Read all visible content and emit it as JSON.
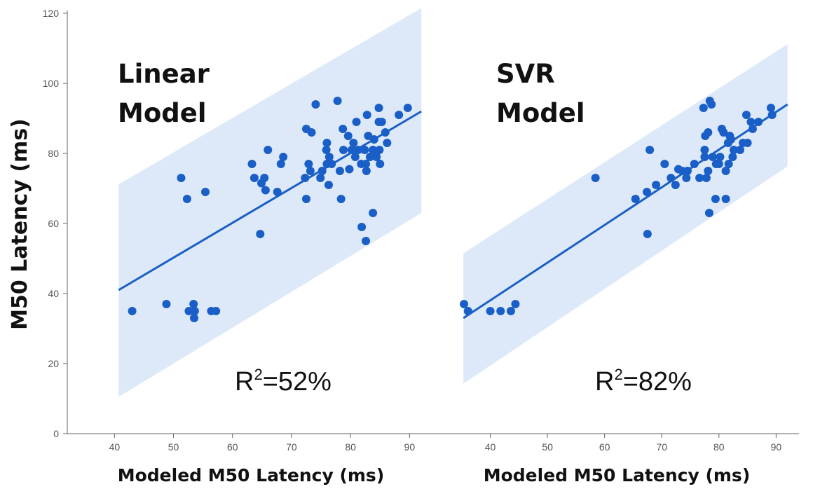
{
  "chart_data": {
    "type": "scatter",
    "ylabel": "M50 Latency (ms)",
    "ylim": [
      0,
      120
    ],
    "yticks": [
      0,
      20,
      40,
      60,
      80,
      100,
      120
    ],
    "colors": {
      "point": "#1a5fc7",
      "line": "#1a5fc7",
      "band": "#dde9f8",
      "axis": "#666666"
    },
    "panels": [
      {
        "title_line1": "Linear",
        "title_line2": "Model",
        "xlabel": "Modeled M50 Latency (ms)",
        "xlim": [
          32,
          94
        ],
        "xticks": [
          40,
          50,
          60,
          70,
          80,
          90
        ],
        "r2_prefix": "R",
        "r2_sup": "2",
        "r2_value": "=52%",
        "fit": {
          "x1": 40.7,
          "y1": 41,
          "x2": 92,
          "y2": 92
        },
        "band": {
          "lower_start": 10.5,
          "upper_start": 71.2,
          "lower_end": 63,
          "upper_end": 121.5
        },
        "points": [
          [
            43,
            35
          ],
          [
            48.8,
            37
          ],
          [
            51.3,
            73
          ],
          [
            52.3,
            67
          ],
          [
            52.6,
            35
          ],
          [
            53.4,
            37
          ],
          [
            53.5,
            35
          ],
          [
            53.5,
            33
          ],
          [
            53.6,
            35
          ],
          [
            55.4,
            69
          ],
          [
            56.4,
            35
          ],
          [
            57.2,
            35
          ],
          [
            63.3,
            77
          ],
          [
            63.7,
            73
          ],
          [
            64.7,
            57
          ],
          [
            64.9,
            71.5
          ],
          [
            65.4,
            73
          ],
          [
            65.6,
            69.5
          ],
          [
            66,
            81
          ],
          [
            67.6,
            69
          ],
          [
            68.2,
            77
          ],
          [
            68.6,
            79
          ],
          [
            72.3,
            73
          ],
          [
            72.5,
            87
          ],
          [
            72.5,
            67
          ],
          [
            72.9,
            77
          ],
          [
            73.2,
            75
          ],
          [
            73.4,
            86
          ],
          [
            74.1,
            94
          ],
          [
            74.9,
            73
          ],
          [
            75.2,
            75
          ],
          [
            75.9,
            81
          ],
          [
            76,
            83
          ],
          [
            76,
            77
          ],
          [
            76.3,
            71
          ],
          [
            76.4,
            79
          ],
          [
            76.8,
            77
          ],
          [
            77.8,
            95
          ],
          [
            78.2,
            75
          ],
          [
            78.4,
            67
          ],
          [
            78.7,
            87
          ],
          [
            78.8,
            81
          ],
          [
            79.6,
            85
          ],
          [
            79.8,
            75.5
          ],
          [
            80.2,
            81
          ],
          [
            80.5,
            83
          ],
          [
            80.8,
            79
          ],
          [
            81,
            89
          ],
          [
            81.3,
            81
          ],
          [
            81.8,
            77
          ],
          [
            81.9,
            59
          ],
          [
            82.4,
            81
          ],
          [
            82.6,
            55
          ],
          [
            82.7,
            75
          ],
          [
            82.6,
            77
          ],
          [
            82.8,
            91
          ],
          [
            83,
            85
          ],
          [
            83.3,
            79
          ],
          [
            83.8,
            63
          ],
          [
            83.8,
            81
          ],
          [
            84,
            84
          ],
          [
            84.4,
            79
          ],
          [
            84.8,
            93
          ],
          [
            84.8,
            89
          ],
          [
            84.9,
            81
          ],
          [
            85,
            77
          ],
          [
            85.3,
            89
          ],
          [
            85.9,
            86
          ],
          [
            86.2,
            83
          ],
          [
            88.2,
            91
          ],
          [
            89.7,
            93
          ]
        ]
      },
      {
        "title_line1": "SVR",
        "title_line2": "Model",
        "xlabel": "Modeled M50 Latency (ms)",
        "xlim": [
          30,
          94
        ],
        "xticks": [
          40,
          50,
          60,
          70,
          80,
          90
        ],
        "r2_prefix": "R",
        "r2_sup": "2",
        "r2_value": "=82%",
        "fit": {
          "x1": 35.3,
          "y1": 33,
          "x2": 92,
          "y2": 94
        },
        "band": {
          "lower_start": 14.3,
          "upper_start": 51.5,
          "lower_end": 76.3,
          "upper_end": 111.2
        },
        "points": [
          [
            35.4,
            37
          ],
          [
            36.1,
            35
          ],
          [
            40,
            35
          ],
          [
            41.8,
            35
          ],
          [
            43.6,
            35
          ],
          [
            44.4,
            37
          ],
          [
            58.4,
            73
          ],
          [
            65.4,
            67
          ],
          [
            67.4,
            69
          ],
          [
            67.5,
            57
          ],
          [
            67.9,
            81
          ],
          [
            69,
            71
          ],
          [
            70.5,
            77
          ],
          [
            71.6,
            73
          ],
          [
            72.4,
            71
          ],
          [
            72.9,
            75.5
          ],
          [
            73.6,
            75
          ],
          [
            74.3,
            73
          ],
          [
            74.5,
            75
          ],
          [
            75.7,
            77
          ],
          [
            76.6,
            73
          ],
          [
            77.3,
            93
          ],
          [
            77.5,
            79
          ],
          [
            77.5,
            81
          ],
          [
            77.6,
            85
          ],
          [
            77.8,
            73
          ],
          [
            78.1,
            75
          ],
          [
            78.1,
            86
          ],
          [
            78.3,
            63
          ],
          [
            78.4,
            95
          ],
          [
            78.7,
            94
          ],
          [
            78.9,
            79
          ],
          [
            79.4,
            67
          ],
          [
            79.5,
            77
          ],
          [
            80,
            77
          ],
          [
            80.2,
            79
          ],
          [
            80.5,
            87
          ],
          [
            80.8,
            86
          ],
          [
            81.2,
            67
          ],
          [
            81.2,
            75
          ],
          [
            81.6,
            83
          ],
          [
            81.7,
            77
          ],
          [
            81.9,
            85
          ],
          [
            82.1,
            84
          ],
          [
            82.4,
            79
          ],
          [
            82.6,
            81
          ],
          [
            83.7,
            81
          ],
          [
            84.2,
            83
          ],
          [
            84.8,
            91
          ],
          [
            85,
            83
          ],
          [
            85.6,
            89
          ],
          [
            85.9,
            87
          ],
          [
            86.9,
            89
          ],
          [
            89.1,
            93
          ],
          [
            89.3,
            91
          ]
        ]
      }
    ]
  }
}
